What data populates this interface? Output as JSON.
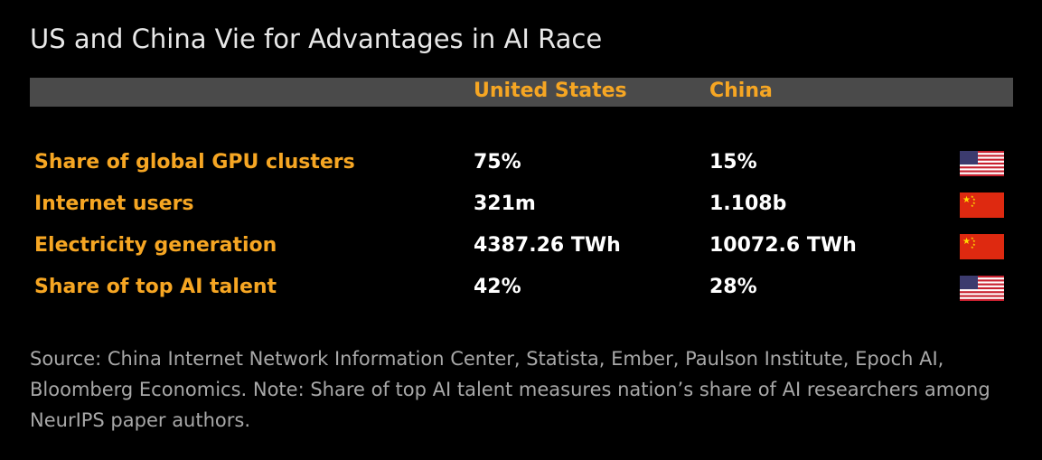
{
  "chart_data": {
    "type": "table",
    "title": "US and China Vie for Advantages in AI Race",
    "columns": [
      "United States",
      "China"
    ],
    "rows": [
      {
        "label": "Share of global GPU clusters",
        "us": "75%",
        "china": "15%",
        "leader_flag": "us-flag-icon"
      },
      {
        "label": "Internet users",
        "us": "321m",
        "china": "1.108b",
        "leader_flag": "china-flag-icon"
      },
      {
        "label": "Electricity generation",
        "us": "4387.26 TWh",
        "china": "10072.6 TWh",
        "leader_flag": "china-flag-icon"
      },
      {
        "label": "Share of top AI talent",
        "us": "42%",
        "china": "28%",
        "leader_flag": "us-flag-icon"
      }
    ],
    "source": "Source: China Internet Network Information Center, Statista, Ember, Paulson Institute, Epoch AI, Bloomberg Economics. Note: Share of top AI talent measures nation’s share of AI researchers among NeurIPS paper authors."
  },
  "colors": {
    "background": "#000000",
    "header_bar": "#4a4a4a",
    "accent_orange": "#f6a623",
    "value_white": "#ffffff",
    "source_gray": "#a8a8a8"
  }
}
